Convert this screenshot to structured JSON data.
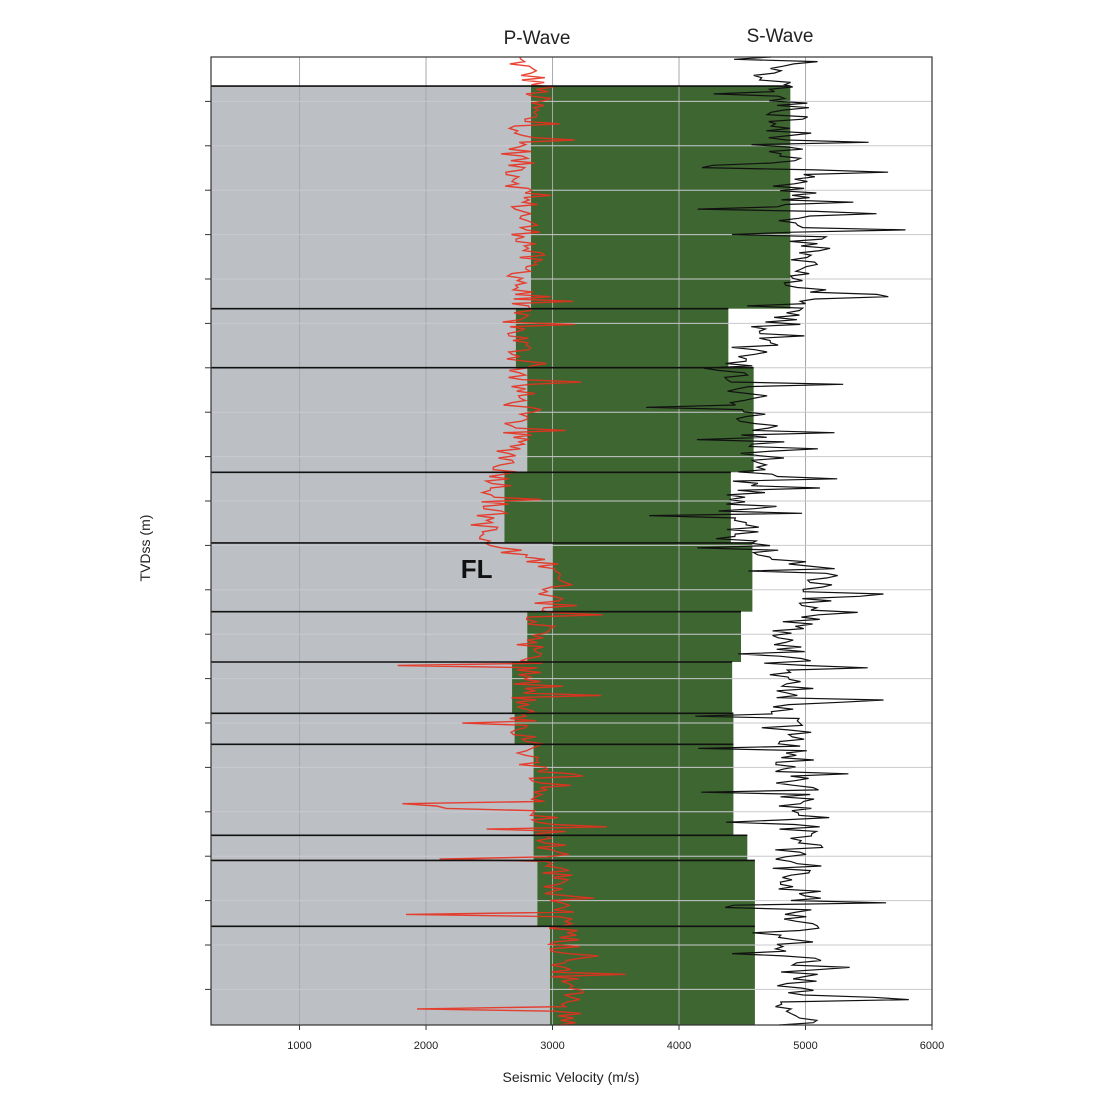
{
  "chart_data": {
    "type": "area",
    "title": "",
    "xlabel": "Seismic Velocity (m/s)",
    "ylabel": "TVDss (m)",
    "xlim": [
      300,
      6000
    ],
    "x_ticks": [
      1000,
      2000,
      3000,
      4000,
      5000,
      6000
    ],
    "ylim": [
      0,
      1
    ],
    "grid": true,
    "series_labels": [
      "P-Wave",
      "S-Wave"
    ],
    "annotations": [
      {
        "text": "FL",
        "x": 2400,
        "y": 0.53
      }
    ],
    "colors": {
      "plot_bg": "#bcbfc4",
      "blocked_fill": "#3e6630",
      "p_wave_log": "#e8301f",
      "s_wave_log": "#111111",
      "grid": "#a9a9b0",
      "boundary": "#111111"
    },
    "layers": [
      {
        "top": 0.03,
        "bottom": 0.26,
        "p_velocity": 2830,
        "s_velocity": 4880
      },
      {
        "top": 0.26,
        "bottom": 0.321,
        "p_velocity": 2710,
        "s_velocity": 4390
      },
      {
        "top": 0.321,
        "bottom": 0.429,
        "p_velocity": 2800,
        "s_velocity": 4590
      },
      {
        "top": 0.429,
        "bottom": 0.502,
        "p_velocity": 2620,
        "s_velocity": 4410
      },
      {
        "top": 0.502,
        "bottom": 0.573,
        "p_velocity": 3000,
        "s_velocity": 4580
      },
      {
        "top": 0.573,
        "bottom": 0.625,
        "p_velocity": 2800,
        "s_velocity": 4490
      },
      {
        "top": 0.625,
        "bottom": 0.678,
        "p_velocity": 2680,
        "s_velocity": 4420
      },
      {
        "top": 0.678,
        "bottom": 0.71,
        "p_velocity": 2700,
        "s_velocity": 4430
      },
      {
        "top": 0.71,
        "bottom": 0.804,
        "p_velocity": 2850,
        "s_velocity": 4430
      },
      {
        "top": 0.804,
        "bottom": 0.83,
        "p_velocity": 2850,
        "s_velocity": 4540
      },
      {
        "top": 0.83,
        "bottom": 0.898,
        "p_velocity": 2880,
        "s_velocity": 4600
      },
      {
        "top": 0.898,
        "bottom": 1.0,
        "p_velocity": 2980,
        "s_velocity": 4600
      }
    ],
    "p_wave_trend": [
      {
        "y": 0.0,
        "x": 2700
      },
      {
        "y": 0.03,
        "x": 2900
      },
      {
        "y": 0.1,
        "x": 2720
      },
      {
        "y": 0.2,
        "x": 2820
      },
      {
        "y": 0.26,
        "x": 2700
      },
      {
        "y": 0.32,
        "x": 2760
      },
      {
        "y": 0.4,
        "x": 2700
      },
      {
        "y": 0.47,
        "x": 2520
      },
      {
        "y": 0.5,
        "x": 2420
      },
      {
        "y": 0.53,
        "x": 3100
      },
      {
        "y": 0.6,
        "x": 2850
      },
      {
        "y": 0.68,
        "x": 2750
      },
      {
        "y": 0.75,
        "x": 2900
      },
      {
        "y": 0.85,
        "x": 3050
      },
      {
        "y": 0.93,
        "x": 3100
      },
      {
        "y": 1.0,
        "x": 3150
      }
    ],
    "s_wave_trend": [
      {
        "y": 0.0,
        "x": 4600
      },
      {
        "y": 0.05,
        "x": 4850
      },
      {
        "y": 0.12,
        "x": 4900
      },
      {
        "y": 0.22,
        "x": 5050
      },
      {
        "y": 0.26,
        "x": 4900
      },
      {
        "y": 0.32,
        "x": 4420
      },
      {
        "y": 0.4,
        "x": 4700
      },
      {
        "y": 0.47,
        "x": 4500
      },
      {
        "y": 0.5,
        "x": 4430
      },
      {
        "y": 0.53,
        "x": 5200
      },
      {
        "y": 0.6,
        "x": 4850
      },
      {
        "y": 0.7,
        "x": 4900
      },
      {
        "y": 0.8,
        "x": 4950
      },
      {
        "y": 0.9,
        "x": 4950
      },
      {
        "y": 1.0,
        "x": 4950
      }
    ]
  }
}
